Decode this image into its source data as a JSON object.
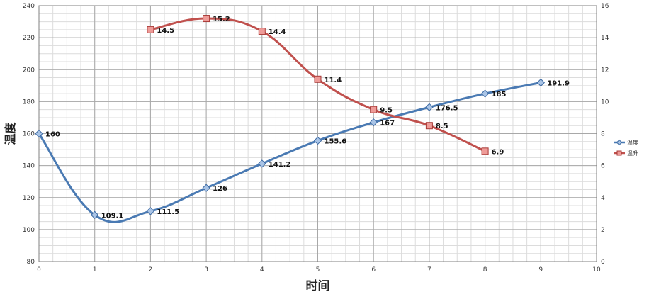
{
  "chart_data": {
    "type": "line",
    "title": "",
    "xlabel": "时间",
    "ylabel": "温度",
    "x_ticks": [
      0,
      1,
      2,
      3,
      4,
      5,
      6,
      7,
      8,
      9,
      10
    ],
    "y_left_ticks": [
      80,
      100,
      120,
      140,
      160,
      180,
      200,
      220,
      240
    ],
    "y_right_ticks": [
      0,
      2,
      4,
      6,
      8,
      10,
      12,
      14,
      16
    ],
    "xlim": [
      0,
      10
    ],
    "ylim_left": [
      80,
      240
    ],
    "ylim_right": [
      0,
      16
    ],
    "grid": true,
    "legend_position": "right",
    "series": [
      {
        "name": "温度",
        "axis": "left",
        "color": "#4a7ab3",
        "marker": "diamond",
        "x": [
          0,
          1,
          2,
          3,
          4,
          5,
          6,
          7,
          8,
          9
        ],
        "values": [
          160,
          109.1,
          111.5,
          126,
          141.2,
          155.6,
          167,
          176.5,
          185,
          191.9
        ],
        "labels": [
          "160",
          "109.1",
          "111.5",
          "126",
          "141.2",
          "155.6",
          "167",
          "176.5",
          "185",
          "191.9"
        ]
      },
      {
        "name": "温升",
        "axis": "right",
        "color": "#c0504d",
        "marker": "square",
        "x": [
          2,
          3,
          4,
          5,
          6,
          7,
          8
        ],
        "values": [
          14.5,
          15.2,
          14.4,
          11.4,
          9.5,
          8.5,
          6.9
        ],
        "labels": [
          "14.5",
          "15.2",
          "14.4",
          "11.4",
          "9.5",
          "8.5",
          "6.9"
        ]
      }
    ]
  }
}
